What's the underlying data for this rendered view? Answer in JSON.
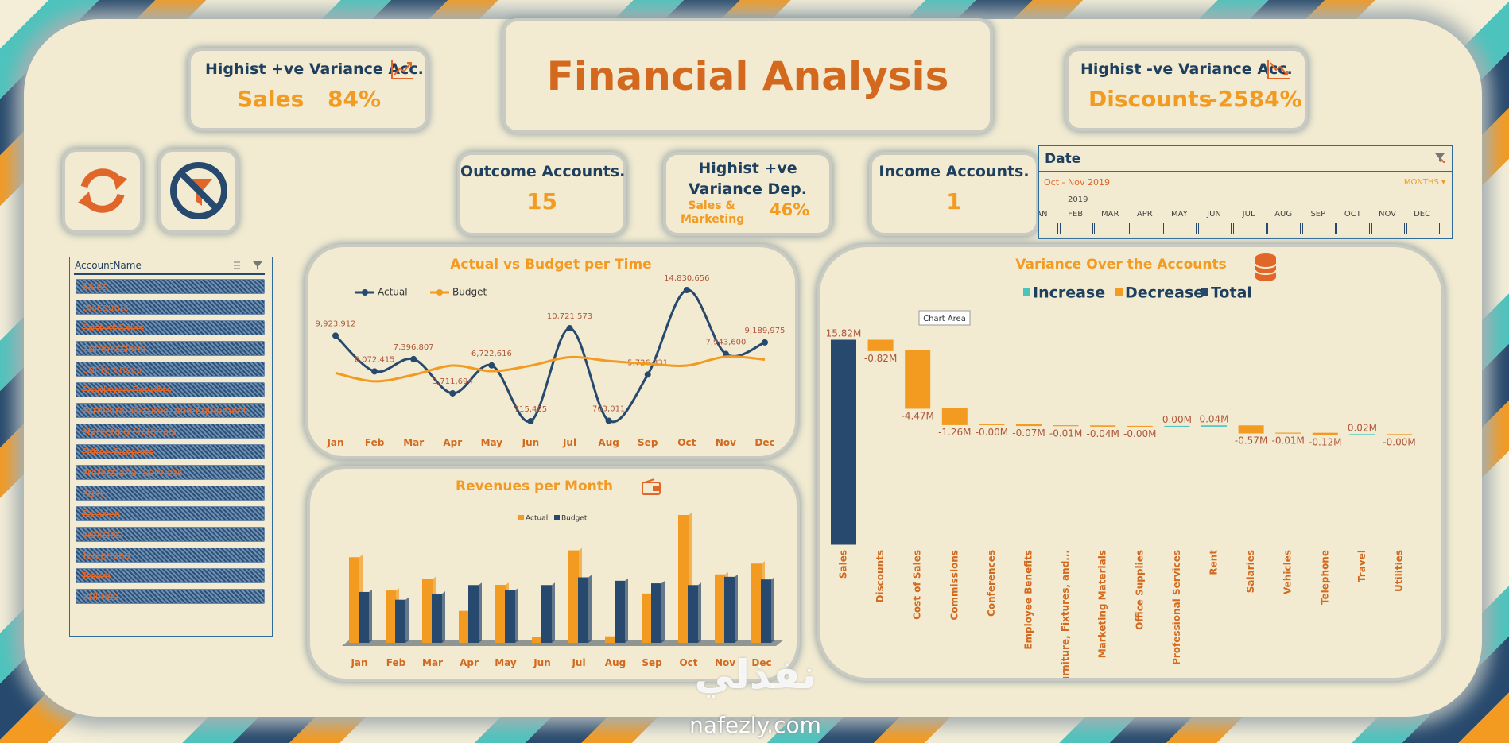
{
  "title": "Financial Analysis",
  "kpis": {
    "positive_account": {
      "label": "Highist +ve Variance Acc.",
      "name": "Sales",
      "value": "84%"
    },
    "negative_account": {
      "label": "Highist -ve Variance Acc.",
      "name": "Discounts",
      "value": "-2584%"
    },
    "outcome_accounts": {
      "label": "Outcome Accounts.",
      "value": 15
    },
    "positive_department": {
      "label": "Highist +ve Variance Dep.",
      "name": "Sales & Marketing",
      "value": "46%"
    },
    "income_accounts": {
      "label": "Income Accounts.",
      "value": 1
    }
  },
  "account_slicer": {
    "header": "AccountName",
    "items": [
      "Sales",
      "Discounts",
      "Cost of Sales",
      "Commissions",
      "Conferences",
      "Employee Benefits",
      "Furniture, Fixtures, and Equipment",
      "Marketing Materials",
      "Office Supplies",
      "Professional Services",
      "Rent",
      "Salaries",
      "Vehicles",
      "Telephone",
      "Travel",
      "Utilities"
    ]
  },
  "date_slicer": {
    "header": "Date",
    "selection": "Oct - Nov 2019",
    "level": "MONTHS ▾",
    "year": "2019",
    "months": [
      "JAN",
      "FEB",
      "MAR",
      "APR",
      "MAY",
      "JUN",
      "JUL",
      "AUG",
      "SEP",
      "OCT",
      "NOV",
      "DEC"
    ]
  },
  "tooltip": "Chart Area",
  "watermark": {
    "logo": "نفذلي",
    "site": "nafezly.com"
  },
  "chart_data": [
    {
      "type": "line",
      "title": "Actual vs Budget per Time",
      "categories": [
        "Jan",
        "Feb",
        "Mar",
        "Apr",
        "May",
        "Jun",
        "Jul",
        "Aug",
        "Sep",
        "Oct",
        "Nov",
        "Dec"
      ],
      "series": [
        {
          "name": "Actual",
          "color": "#27496d",
          "values": [
            9923912,
            6072415,
            7396807,
            3711694,
            6722616,
            715465,
            10721573,
            763011,
            5726331,
            14830656,
            7943600,
            9189975
          ],
          "value_labels": [
            "9,923,912",
            "6,072,415",
            "7,396,807",
            "3,711,694",
            "6,722,616",
            "715,465",
            "10,721,573",
            "763,011",
            "5,726,331",
            "14,830,656",
            "7,943,600",
            "9,189,975"
          ]
        },
        {
          "name": "Budget",
          "color": "#f39a21",
          "values": [
            5900000,
            5000000,
            5700000,
            6700000,
            6100000,
            6700000,
            7600000,
            7200000,
            6900000,
            6700000,
            7660000,
            7350000
          ]
        }
      ]
    },
    {
      "type": "bar",
      "title": "Revenues per Month",
      "categories": [
        "Jan",
        "Feb",
        "Mar",
        "Apr",
        "May",
        "Jun",
        "Jul",
        "Aug",
        "Sep",
        "Oct",
        "Nov",
        "Dec"
      ],
      "series": [
        {
          "name": "Actual",
          "color": "#f39a21",
          "values": [
            9923912,
            6072415,
            7396807,
            3711694,
            6722616,
            715465,
            10721573,
            763011,
            5726331,
            14830656,
            7943600,
            9189975
          ]
        },
        {
          "name": "Budget",
          "color": "#27496d",
          "values": [
            5900000,
            5000000,
            5700000,
            6700000,
            6100000,
            6700000,
            7600000,
            7200000,
            6900000,
            6700000,
            7660000,
            7350000
          ]
        }
      ]
    },
    {
      "type": "waterfall",
      "title": "Variance Over the Accounts",
      "categories": [
        "Sales",
        "Discounts",
        "Cost of Sales",
        "Commissions",
        "Conferences",
        "Employee Benefits",
        "Furniture, Fixtures, and...",
        "Marketing Materials",
        "Office Supplies",
        "Professional Services",
        "Rent",
        "Salaries",
        "Vehicles",
        "Telephone",
        "Travel",
        "Utilities"
      ],
      "values": [
        15.82,
        -0.82,
        -4.47,
        -1.26,
        -0.004,
        -0.07,
        -0.01,
        -0.04,
        -0.004,
        0.004,
        0.04,
        -0.57,
        -0.01,
        -0.12,
        0.02,
        -0.004
      ],
      "value_labels": [
        "15.82M",
        "-0.82M",
        "-4.47M",
        "-1.26M",
        "-0.00M",
        "-0.07M",
        "-0.01M",
        "-0.04M",
        "-0.00M",
        "0.00M",
        "0.04M",
        "-0.57M",
        "-0.01M",
        "-0.12M",
        "0.02M",
        "-0.00M"
      ],
      "legend": [
        {
          "name": "Increase",
          "color": "#4dc3bd"
        },
        {
          "name": "Decrease",
          "color": "#f39a21"
        },
        {
          "name": "Total",
          "color": "#27496d"
        }
      ]
    }
  ]
}
